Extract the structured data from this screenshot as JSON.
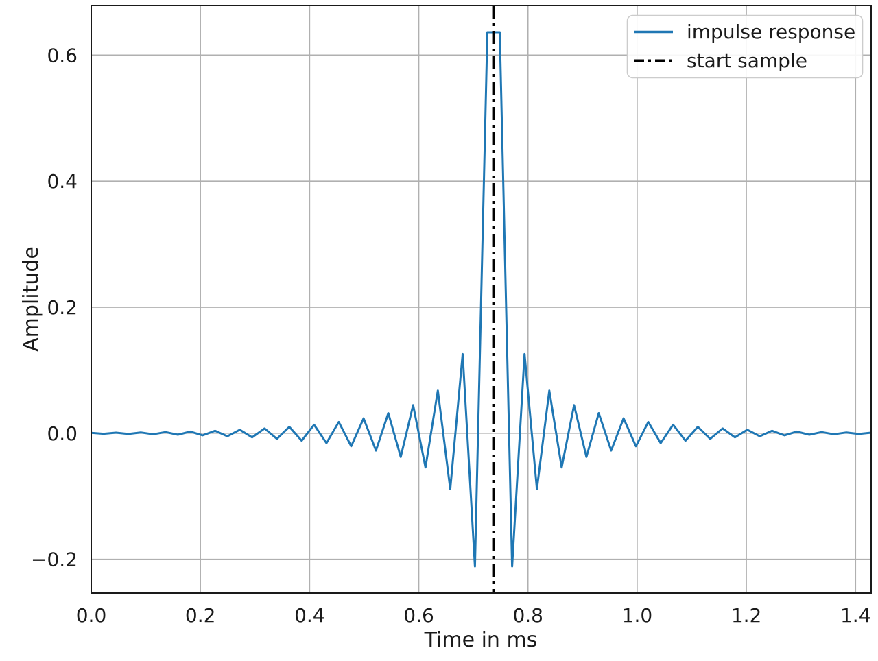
{
  "figure": {
    "xlabel": "Time in ms",
    "ylabel": "Amplitude",
    "background_color": "#ffffff",
    "grid_color": "#b0b0b0",
    "spine_color": "#1a1a1a",
    "text_color": "#1a1a1a"
  },
  "legend": {
    "position": "upper right",
    "border_color": "#cccccc",
    "entries": [
      {
        "label": "impulse response",
        "color": "#1f77b4",
        "style": "solid"
      },
      {
        "label": "start sample",
        "color": "#000000",
        "style": "dashdot"
      }
    ]
  },
  "chart_data": {
    "type": "line",
    "title": "",
    "xlabel": "Time in ms",
    "ylabel": "Amplitude",
    "xlim": [
      0.0,
      1.42857
    ],
    "ylim": [
      -0.2536,
      0.6787
    ],
    "grid": true,
    "legend_position": "upper right",
    "xticks": {
      "values": [
        0.0,
        0.2,
        0.4,
        0.6,
        0.8,
        1.0,
        1.2,
        1.4
      ],
      "labels": [
        "0.0",
        "0.2",
        "0.4",
        "0.6",
        "0.8",
        "1.0",
        "1.2",
        "1.4"
      ]
    },
    "yticks": {
      "values": [
        0.6,
        0.4,
        0.2,
        0.0,
        -0.2
      ],
      "labels": [
        "0.6",
        "0.4",
        "0.2",
        "0.0",
        "−0.2"
      ]
    },
    "series": [
      {
        "name": "impulse response",
        "color": "#1f77b4",
        "x_ms": [
          0.0,
          0.0227,
          0.0454,
          0.068,
          0.0907,
          0.1134,
          0.1361,
          0.1587,
          0.1814,
          0.2041,
          0.2268,
          0.2494,
          0.2721,
          0.2948,
          0.3175,
          0.3401,
          0.3628,
          0.3855,
          0.4082,
          0.4308,
          0.4535,
          0.4762,
          0.4989,
          0.5215,
          0.5442,
          0.5669,
          0.5896,
          0.6122,
          0.6349,
          0.6576,
          0.6803,
          0.7029,
          0.7256,
          0.7483,
          0.771,
          0.7937,
          0.8163,
          0.839,
          0.8617,
          0.8844,
          0.907,
          0.9297,
          0.9524,
          0.9751,
          0.9977,
          1.0204,
          1.0431,
          1.0658,
          1.0884,
          1.1111,
          1.1338,
          1.1565,
          1.1791,
          1.2018,
          1.2245,
          1.2472,
          1.2698,
          1.2925,
          1.3152,
          1.3379,
          1.3605,
          1.3832,
          1.4059,
          1.4286
        ],
        "y": [
          0.00078,
          -0.00083,
          0.00092,
          -0.00107,
          0.00127,
          -0.00154,
          0.00186,
          -0.00226,
          0.00274,
          -0.00329,
          0.00394,
          -0.00468,
          0.00553,
          -0.00649,
          0.00758,
          -0.00881,
          0.0102,
          -0.01177,
          0.01355,
          -0.01558,
          0.0179,
          -0.02059,
          0.02373,
          -0.02745,
          0.03196,
          -0.03753,
          0.04467,
          -0.0542,
          0.06771,
          -0.08859,
          0.12565,
          -0.21126,
          0.63628,
          0.63628,
          -0.21119,
          0.12562,
          -0.08858,
          0.06771,
          -0.0542,
          0.04467,
          -0.03753,
          0.03195,
          -0.02745,
          0.02373,
          -0.02059,
          0.0179,
          -0.01558,
          0.01355,
          -0.01177,
          0.0102,
          -0.00881,
          0.00758,
          -0.00649,
          0.00553,
          -0.00468,
          0.00394,
          -0.0033,
          0.00274,
          -0.00226,
          0.00187,
          -0.00154,
          0.00127,
          -0.00107,
          0.00092
        ]
      }
    ],
    "vline": {
      "name": "start sample",
      "x_ms": 0.737,
      "color": "#000000",
      "style": "dashdot"
    }
  }
}
